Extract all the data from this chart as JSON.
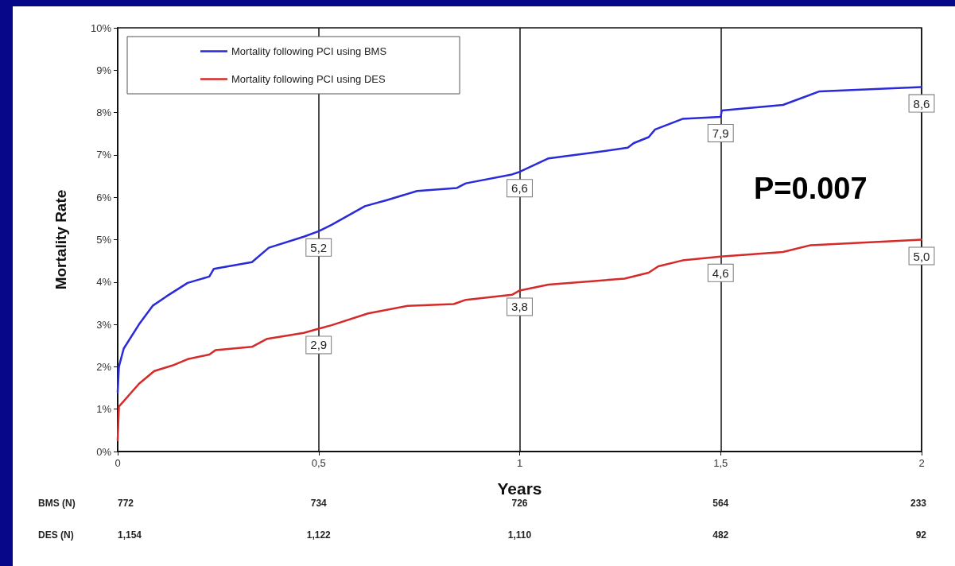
{
  "chart_data": {
    "type": "line",
    "xlabel": "Years",
    "ylabel": "Mortality Rate",
    "xlim": [
      0,
      2
    ],
    "xticks": [
      0,
      {
        "value": 0.5,
        "label": "0,5"
      },
      1,
      {
        "value": 1.5,
        "label": "1,5"
      },
      2
    ],
    "ylim": [
      0,
      10
    ],
    "yticks": [
      {
        "value": 0,
        "label": "0%"
      },
      {
        "value": 1,
        "label": "1%"
      },
      {
        "value": 2,
        "label": "2%"
      },
      {
        "value": 3,
        "label": "3%"
      },
      {
        "value": 4,
        "label": "4%"
      },
      {
        "value": 5,
        "label": "5%"
      },
      {
        "value": 6,
        "label": "6%"
      },
      {
        "value": 7,
        "label": "7%"
      },
      {
        "value": 8,
        "label": "8%"
      },
      {
        "value": 9,
        "label": "9%"
      },
      {
        "value": 10,
        "label": "10%"
      }
    ],
    "grid": "x",
    "legend": "top left",
    "marker": "none",
    "line_style": "solid",
    "series": [
      {
        "name": "Mortality following PCI using BMS",
        "color": "#2a2ad8",
        "x": [
          0,
          0.003,
          0.015,
          0.053,
          0.087,
          0.121,
          0.174,
          0.228,
          0.239,
          0.334,
          0.376,
          0.463,
          0.5,
          0.532,
          0.615,
          0.668,
          0.745,
          0.844,
          0.866,
          0.981,
          1.0,
          1.072,
          1.163,
          1.269,
          1.284,
          1.321,
          1.337,
          1.405,
          1.5,
          1.503,
          1.655,
          1.746,
          2.0
        ],
        "values": [
          1.4,
          2.0,
          2.43,
          3.0,
          3.44,
          3.66,
          3.98,
          4.13,
          4.31,
          4.47,
          4.81,
          5.07,
          5.2,
          5.35,
          5.79,
          5.93,
          6.15,
          6.22,
          6.33,
          6.54,
          6.6,
          6.92,
          7.03,
          7.17,
          7.28,
          7.42,
          7.6,
          7.85,
          7.9,
          8.05,
          8.18,
          8.5,
          8.6
        ],
        "value_labels": [
          null,
          null,
          null,
          null,
          null,
          null,
          null,
          null,
          null,
          null,
          null,
          null,
          "5,2",
          null,
          null,
          null,
          null,
          null,
          null,
          null,
          "6,6",
          null,
          null,
          null,
          null,
          null,
          null,
          null,
          "7,9",
          null,
          null,
          null,
          "8,6"
        ]
      },
      {
        "name": "Mortality following PCI using DES",
        "color": "#d42a2a",
        "x": [
          0,
          0.003,
          0.053,
          0.091,
          0.136,
          0.174,
          0.228,
          0.243,
          0.334,
          0.372,
          0.463,
          0.5,
          0.532,
          0.623,
          0.722,
          0.836,
          0.866,
          0.981,
          1.0,
          1.072,
          1.261,
          1.321,
          1.345,
          1.405,
          1.5,
          1.655,
          1.724,
          2.0
        ],
        "values": [
          0.27,
          1.06,
          1.6,
          1.9,
          2.03,
          2.18,
          2.29,
          2.39,
          2.47,
          2.66,
          2.8,
          2.9,
          2.98,
          3.26,
          3.44,
          3.48,
          3.58,
          3.7,
          3.8,
          3.94,
          4.08,
          4.22,
          4.37,
          4.51,
          4.6,
          4.71,
          4.87,
          5.0
        ],
        "value_labels": [
          null,
          null,
          null,
          null,
          null,
          null,
          null,
          null,
          null,
          null,
          null,
          "2,9",
          null,
          null,
          null,
          null,
          null,
          null,
          "3,8",
          null,
          null,
          null,
          null,
          null,
          "4,6",
          null,
          null,
          "5,0"
        ]
      }
    ],
    "annotations": [
      "P=0.007",
      "BMS (N)",
      "772",
      "734",
      "726",
      "564",
      "233",
      "DES (N)",
      "1,154",
      "1,122",
      "1,110",
      "482",
      "92"
    ]
  }
}
